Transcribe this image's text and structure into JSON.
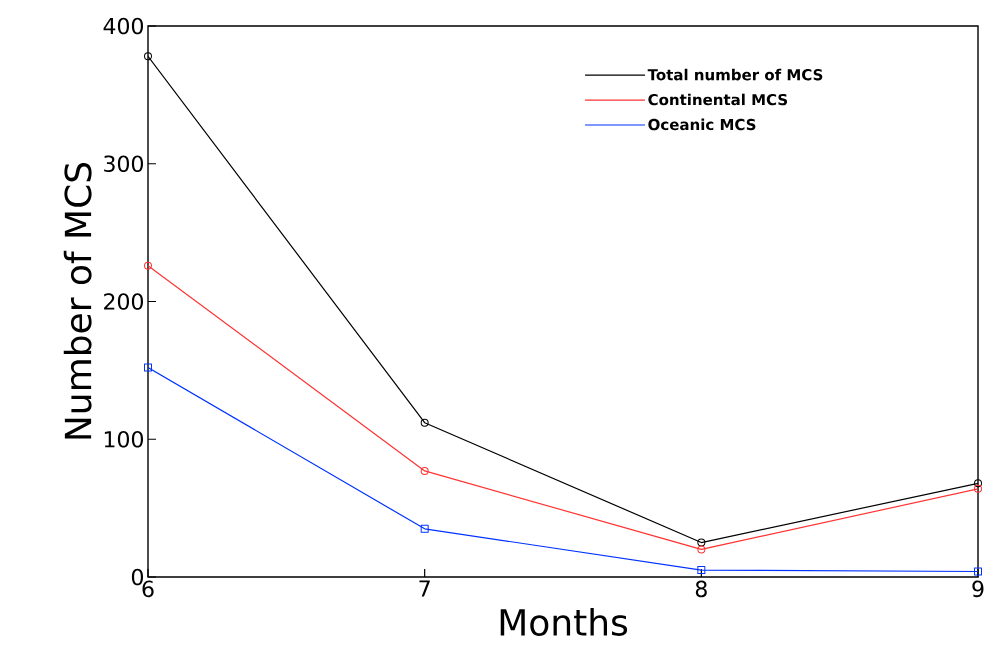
{
  "chart_data": {
    "type": "line",
    "xlabel": "Months",
    "ylabel": "Number of MCS",
    "x": [
      6,
      7,
      8,
      9
    ],
    "xlim": [
      6,
      9
    ],
    "xticks": [
      6,
      7,
      8,
      9
    ],
    "ylim": [
      0,
      400
    ],
    "yticks": [
      0,
      100,
      200,
      300,
      400
    ],
    "legend": "top right",
    "line_style": "solid",
    "series": [
      {
        "name": "Total number of MCS",
        "color": "#000000",
        "marker": "circle",
        "values": [
          378,
          112,
          25,
          68
        ]
      },
      {
        "name": "Continental MCS",
        "color": "#ff3333",
        "marker": "circle",
        "values": [
          226,
          77,
          20,
          64
        ]
      },
      {
        "name": "Oceanic MCS",
        "color": "#0033ff",
        "marker": "square",
        "values": [
          152,
          35,
          5,
          4
        ]
      }
    ]
  }
}
